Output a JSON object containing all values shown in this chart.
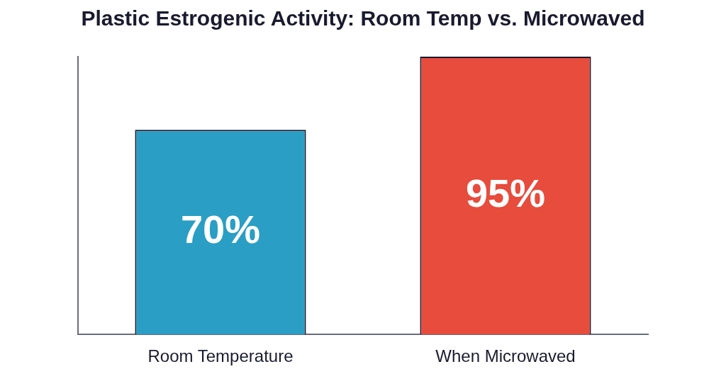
{
  "chart_data": {
    "type": "bar",
    "title": "Plastic Estrogenic Activity: Room Temp vs. Microwaved",
    "categories": [
      "Room Temperature",
      "When Microwaved"
    ],
    "values": [
      70,
      95
    ],
    "colors": [
      "#2a9ec4",
      "#e74c3c"
    ],
    "value_labels": [
      "70%",
      "95%"
    ],
    "grid": false,
    "legend": false
  }
}
